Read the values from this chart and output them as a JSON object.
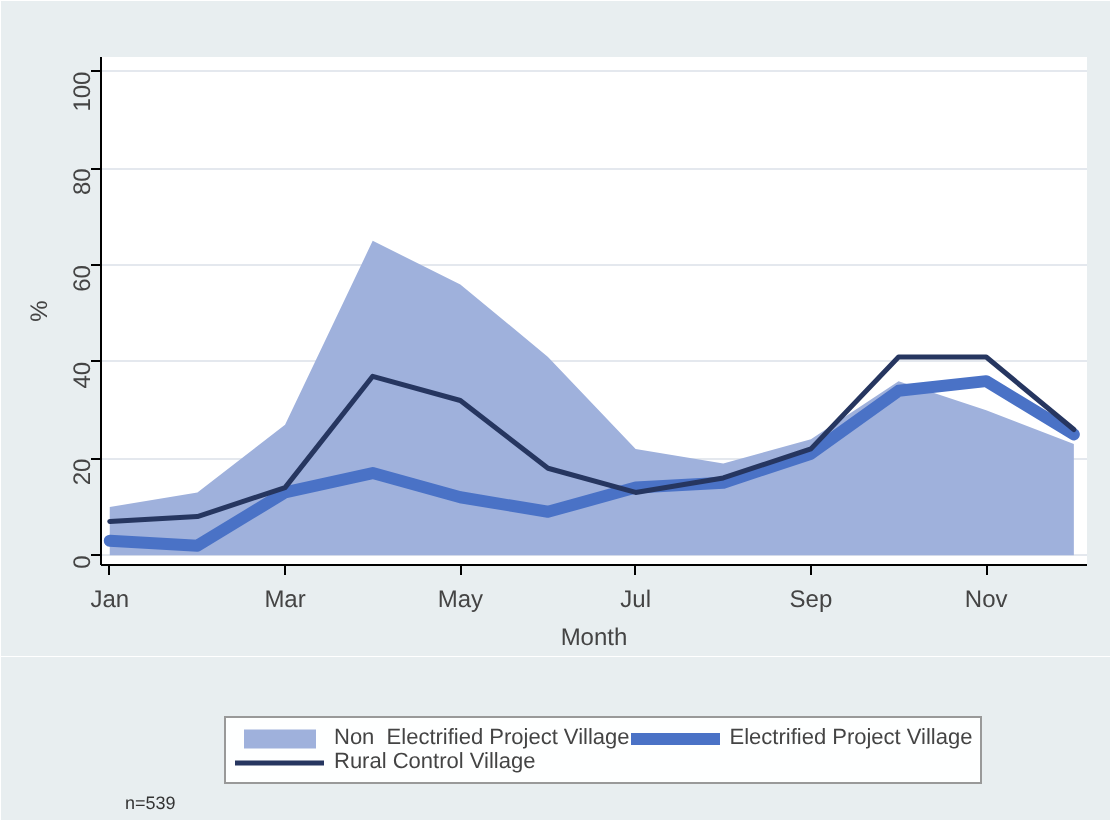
{
  "chart_data": {
    "type": "line",
    "xlabel": "Month",
    "ylabel": "%",
    "categories": [
      "Jan",
      null,
      "Mar",
      null,
      "May",
      null,
      "Jul",
      null,
      "Sep",
      null,
      "Nov",
      null
    ],
    "series": [
      {
        "name": "Non  Electrified Project Village",
        "type": "area",
        "color": "#9fb1dc",
        "values": [
          10,
          13,
          27,
          65,
          56,
          41,
          22,
          19,
          24,
          36,
          30,
          23
        ]
      },
      {
        "name": "Electrified Project Village",
        "color": "#4a72c6",
        "values": [
          3,
          2,
          13,
          17,
          12,
          9,
          14,
          15,
          21,
          34,
          36,
          25
        ]
      },
      {
        "name": "Rural Control Village",
        "color": "#263660",
        "values": [
          7,
          8,
          14,
          37,
          32,
          18,
          13,
          16,
          22,
          41,
          41,
          26
        ]
      }
    ],
    "ylim": [
      -2,
      103
    ],
    "yticks": [
      0,
      20,
      40,
      60,
      80,
      100
    ],
    "grid": "y",
    "legend": "bottom",
    "annotations": [
      "n=539"
    ]
  }
}
